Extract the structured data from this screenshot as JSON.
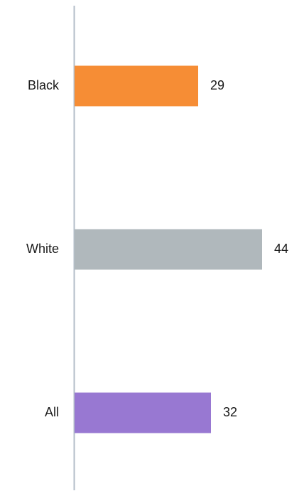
{
  "chart_data": {
    "type": "bar",
    "orientation": "horizontal",
    "categories": [
      "Black",
      "White",
      "All"
    ],
    "values": [
      29,
      44,
      32
    ],
    "colors": [
      "#f68d35",
      "#b0b8bc",
      "#9878d2"
    ],
    "axis_color": "#b3bec8",
    "title": "",
    "xlabel": "",
    "ylabel": "",
    "xlim": [
      0,
      44
    ],
    "grid": false,
    "legend": "none"
  }
}
